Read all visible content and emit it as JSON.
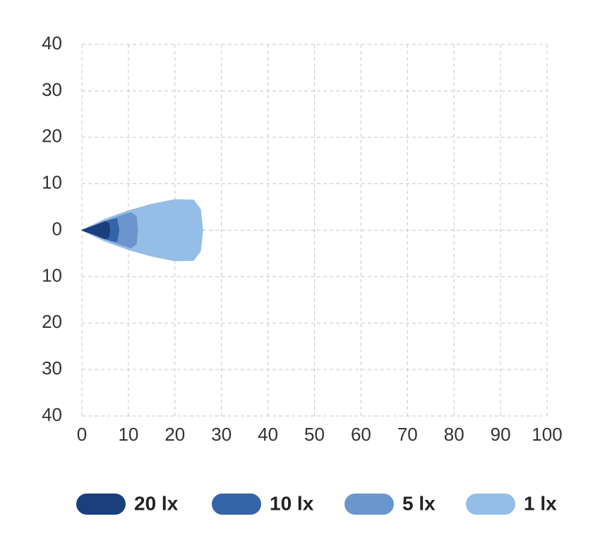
{
  "chart_data": {
    "type": "beam",
    "xlim": [
      0,
      100
    ],
    "xticks": [
      0,
      10,
      20,
      30,
      40,
      50,
      60,
      70,
      80,
      90,
      100
    ],
    "ylim": [
      -40,
      40
    ],
    "yticks": [
      40,
      30,
      20,
      10,
      0,
      {
        "value": -10,
        "label": "10"
      },
      {
        "value": -20,
        "label": "20"
      },
      {
        "value": -30,
        "label": "30"
      },
      {
        "value": -40,
        "label": "40"
      }
    ],
    "grid": true,
    "legend": "bottom",
    "series": [
      {
        "name": "20 lx",
        "color": "#1b3f7c",
        "x": [
          0,
          3,
          5,
          5.8,
          6
        ],
        "values": [
          0,
          1.1,
          1.9,
          1.5,
          0
        ]
      },
      {
        "name": "10 lx",
        "color": "#3664a9",
        "x": [
          0,
          3,
          6,
          7.5,
          8
        ],
        "values": [
          0,
          1,
          2.2,
          2.5,
          0
        ]
      },
      {
        "name": "5 lx",
        "color": "#6b96cd",
        "x": [
          0,
          4,
          8,
          10.5,
          11.7,
          12
        ],
        "values": [
          0,
          1.5,
          3,
          3.8,
          3,
          0
        ]
      },
      {
        "name": "1 lx",
        "color": "#94bee7",
        "x": [
          0,
          5,
          10,
          15,
          20,
          24,
          25.5,
          26
        ],
        "values": [
          0,
          2.4,
          4.2,
          5.6,
          6.6,
          6.5,
          4.5,
          0
        ]
      }
    ]
  }
}
